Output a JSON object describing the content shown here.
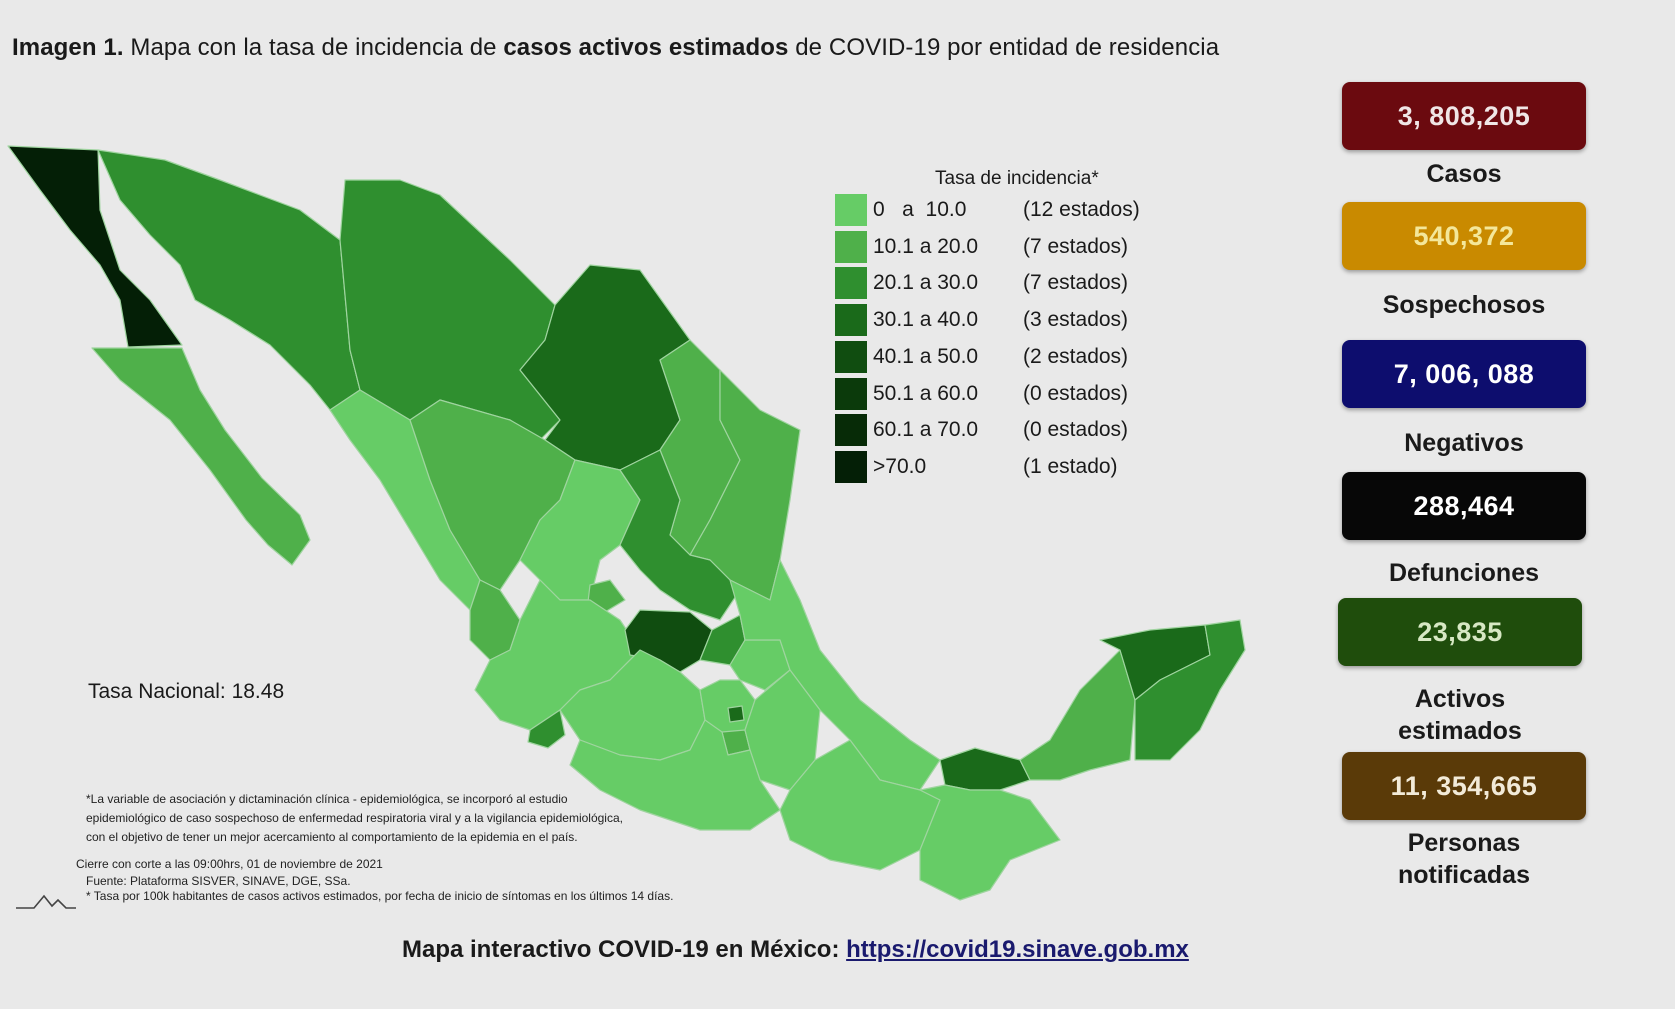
{
  "title": {
    "prefix_bold": "Imagen 1.",
    "part1": " Mapa con la tasa de incidencia de ",
    "emph_bold": "casos activos estimados",
    "part2": " de COVID-19 por entidad de residencia"
  },
  "legend": {
    "title": "Tasa de incidencia*",
    "items": [
      {
        "range": "0   a  10.0",
        "count": "(12 estados)",
        "color": "#66cc66"
      },
      {
        "range": "10.1 a 20.0",
        "count": "(7 estados)",
        "color": "#4fb04a"
      },
      {
        "range": "20.1 a 30.0",
        "count": "(7 estados)",
        "color": "#2f8f2f"
      },
      {
        "range": "30.1 a 40.0",
        "count": "(3 estados)",
        "color": "#1a6a1a"
      },
      {
        "range": "40.1 a 50.0",
        "count": "(2 estados)",
        "color": "#104d10"
      },
      {
        "range": "50.1 a 60.0",
        "count": "(0 estados)",
        "color": "#0b3a0b"
      },
      {
        "range": "60.1 a 70.0",
        "count": "(0 estados)",
        "color": "#072b07"
      },
      {
        "range": ">70.0",
        "count": "(1 estado)",
        "color": "#041f06"
      }
    ]
  },
  "national_rate": "Tasa Nacional: 18.48",
  "notes": {
    "line1": "*La variable de asociación y dictaminación clínica - epidemiológica, se incorporó al estudio",
    "line2": "epidemiológico de caso sospechoso de enfermedad respiratoria viral y a la vigilancia epidemiológica,",
    "line3": "con el objetivo de tener un mejor acercamiento al comportamiento de la epidemia en el país.",
    "cierre": "Cierre con corte a las 09:00hrs, 01 de noviembre de 2021",
    "fuente": "Fuente: Plataforma SISVER, SINAVE, DGE, SSa.",
    "tasa": "* Tasa por 100k habitantes de casos activos estimados, por fecha de inicio de síntomas en los últimos 14 días."
  },
  "footer": {
    "text": "Mapa interactivo COVID-19 en México: ",
    "link": "https://covid19.sinave.gob.mx"
  },
  "stats": [
    {
      "value": "3, 808,205",
      "label": "Casos",
      "bg": "#6b0a0f",
      "fg": "#f0e6e6"
    },
    {
      "value": "540,372",
      "label": "Sospechosos",
      "bg": "#c98a00",
      "fg": "#f4e79a"
    },
    {
      "value": "7, 006, 088",
      "label": "Negativos",
      "bg": "#0d0d6e",
      "fg": "#ffffff"
    },
    {
      "value": "288,464",
      "label": "Defunciones",
      "bg": "#070707",
      "fg": "#ffffff"
    },
    {
      "value": "23,835",
      "label": "Activos estimados",
      "bg": "#1f4d0c",
      "fg": "#d7e8c4"
    },
    {
      "value": "11, 354,665",
      "label": "Personas notificadas",
      "bg": "#5a3a08",
      "fg": "#f2ead8"
    }
  ],
  "state_colors": {
    "c0": "#66cc66",
    "c1": "#4fb04a",
    "c2": "#2f8f2f",
    "c3": "#1a6a1a",
    "c4": "#104d10",
    "c7": "#041f06"
  }
}
